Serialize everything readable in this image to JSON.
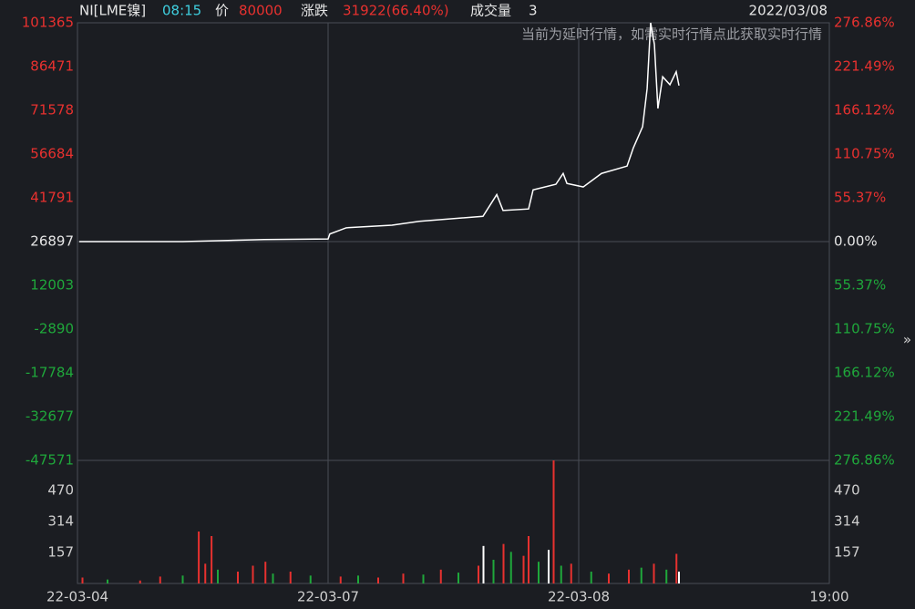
{
  "header": {
    "symbol": "NI[LME镍]",
    "time": "08:15",
    "price_label": "价",
    "price": "80000",
    "change_label": "涨跌",
    "change": "31922(66.40%)",
    "volume_label": "成交量",
    "volume": "3",
    "date": "2022/03/08",
    "notice": "当前为延时行情，如需实时行情点此获取实时行情",
    "expand": "»"
  },
  "chart_data": [
    {
      "type": "line",
      "name": "price",
      "color": "#ffffff",
      "x": [
        0.007,
        0.42,
        0.745,
        1.0,
        1.007,
        1.073,
        1.255,
        1.364,
        1.618,
        1.673,
        1.698,
        1.8,
        1.818,
        1.909,
        1.938,
        1.953,
        2.018,
        2.091,
        2.193,
        2.218,
        2.255,
        2.273,
        2.287,
        2.302,
        2.316,
        2.335,
        2.364,
        2.389,
        2.4
      ],
      "values": [
        26900,
        26900,
        27600,
        27800,
        29500,
        31600,
        32500,
        33800,
        35500,
        42900,
        37500,
        38000,
        44500,
        46400,
        50100,
        46700,
        45500,
        50100,
        52600,
        58800,
        66000,
        79000,
        101365,
        94000,
        72200,
        83000,
        80300,
        84700,
        80000
      ],
      "base": 26897,
      "xlim": [
        0,
        3
      ],
      "xticks": [
        {
          "value": 0,
          "label": "22-03-04"
        },
        {
          "value": 1,
          "label": "22-03-07"
        },
        {
          "value": 2,
          "label": "22-03-08"
        },
        {
          "value": 3,
          "label": "19:00"
        }
      ],
      "ylim": [
        -47571,
        101365
      ],
      "yticks": [
        101365,
        86471,
        71578,
        56684,
        41791,
        26897,
        12003,
        -2890,
        -17784,
        -32677,
        -47571
      ],
      "y2lim": [
        -276.86,
        276.86
      ],
      "y2ticks": [
        {
          "value": 276.86,
          "label": "276.86%"
        },
        {
          "value": 221.49,
          "label": "221.49%"
        },
        {
          "value": 166.12,
          "label": "166.12%"
        },
        {
          "value": 110.75,
          "label": "110.75%"
        },
        {
          "value": 55.37,
          "label": "55.37%"
        },
        {
          "value": 0,
          "label": "0.00%"
        },
        {
          "value": -55.37,
          "label": "55.37%"
        },
        {
          "value": -110.75,
          "label": "110.75%"
        },
        {
          "value": -166.12,
          "label": "166.12%"
        },
        {
          "value": -221.49,
          "label": "221.49%"
        },
        {
          "value": -276.86,
          "label": "276.86%"
        }
      ],
      "up_color": "#e8312f",
      "down_color": "#1fa83b",
      "flat_color": "#e6e6e6"
    },
    {
      "type": "bar",
      "name": "volume",
      "x": [
        0.02,
        0.12,
        0.25,
        0.33,
        0.42,
        0.484,
        0.51,
        0.535,
        0.56,
        0.64,
        0.7,
        0.75,
        0.78,
        0.85,
        0.93,
        1.05,
        1.12,
        1.2,
        1.3,
        1.38,
        1.45,
        1.52,
        1.6,
        1.62,
        1.66,
        1.7,
        1.73,
        1.78,
        1.8,
        1.84,
        1.88,
        1.9,
        1.93,
        1.97,
        2.05,
        2.12,
        2.2,
        2.25,
        2.3,
        2.35,
        2.39,
        2.4
      ],
      "values": [
        30,
        20,
        15,
        35,
        40,
        263,
        100,
        240,
        70,
        60,
        90,
        110,
        50,
        60,
        40,
        35,
        40,
        30,
        50,
        45,
        70,
        55,
        90,
        190,
        120,
        200,
        160,
        140,
        240,
        110,
        170,
        623,
        90,
        100,
        60,
        50,
        70,
        80,
        100,
        70,
        150,
        60
      ],
      "colors": [
        "#e8312f",
        "#1fa83b",
        "#e8312f",
        "#e8312f",
        "#1fa83b",
        "#e8312f",
        "#e8312f",
        "#e8312f",
        "#1fa83b",
        "#e8312f",
        "#e8312f",
        "#e8312f",
        "#1fa83b",
        "#e8312f",
        "#1fa83b",
        "#e8312f",
        "#1fa83b",
        "#e8312f",
        "#e8312f",
        "#1fa83b",
        "#e8312f",
        "#1fa83b",
        "#e8312f",
        "#ffffff",
        "#1fa83b",
        "#e8312f",
        "#1fa83b",
        "#e8312f",
        "#e8312f",
        "#1fa83b",
        "#ffffff",
        "#e8312f",
        "#1fa83b",
        "#e8312f",
        "#1fa83b",
        "#e8312f",
        "#e8312f",
        "#1fa83b",
        "#e8312f",
        "#1fa83b",
        "#e8312f",
        "#ffffff"
      ],
      "ylim": [
        0,
        623
      ],
      "yticks": [
        157,
        314,
        470
      ]
    }
  ]
}
